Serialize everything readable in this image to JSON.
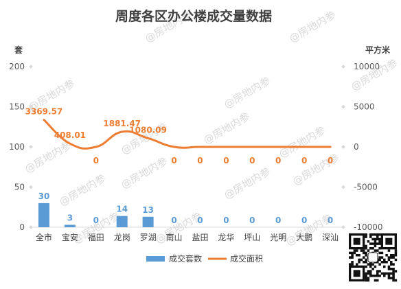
{
  "watermark": "@房地内参",
  "chart_data": {
    "type": "bar",
    "title": "周度各区办公楼成交量数据",
    "categories": [
      "全市",
      "宝安",
      "福田",
      "龙岗",
      "罗湖",
      "南山",
      "盐田",
      "龙华",
      "坪山",
      "光明",
      "大鹏",
      "深汕"
    ],
    "y_left": {
      "label": "套",
      "ylim": [
        0,
        200
      ],
      "ticks": [
        0,
        50,
        100,
        150,
        200
      ]
    },
    "y_right": {
      "label": "平方米",
      "ylim": [
        -10000,
        10000
      ],
      "ticks": [
        -10000,
        -5000,
        0,
        5000,
        10000
      ]
    },
    "series": [
      {
        "name": "成交套数",
        "type": "bar",
        "axis": "left",
        "color": "#5b9bd5",
        "values": [
          30,
          3,
          0,
          14,
          13,
          0,
          0,
          0,
          0,
          0,
          0,
          0
        ]
      },
      {
        "name": "成交面积",
        "type": "line",
        "axis": "right",
        "color": "#ed7d31",
        "smooth": true,
        "values": [
          3369.57,
          408.01,
          0,
          1881.47,
          1080.09,
          0,
          0,
          0,
          0,
          0,
          0,
          0
        ],
        "data_labels": [
          "3369.57",
          "408.01",
          "0",
          "1881.47",
          "1080.09",
          "0",
          "0",
          "0",
          "0",
          "0",
          "0",
          "0"
        ]
      }
    ],
    "grid": false,
    "legend": "bottom"
  }
}
